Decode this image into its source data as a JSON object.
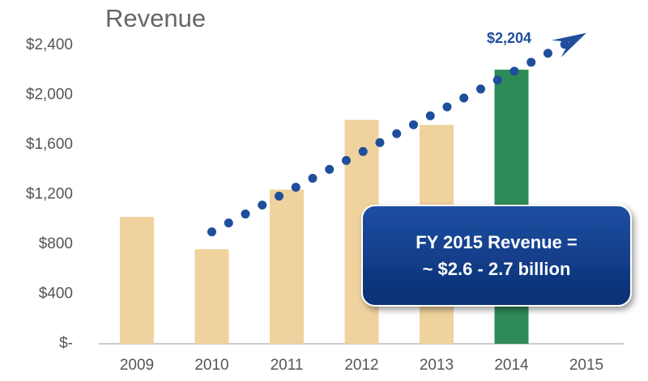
{
  "chart_data": {
    "type": "bar",
    "title": "Revenue",
    "categories": [
      "2009",
      "2010",
      "2011",
      "2012",
      "2013",
      "2014",
      "2015"
    ],
    "values": [
      1020,
      760,
      1240,
      1800,
      1760,
      2204,
      null
    ],
    "value_labels": [
      null,
      null,
      null,
      null,
      null,
      "$2,204",
      null
    ],
    "colors": [
      "#f0d29e",
      "#f0d29e",
      "#f0d29e",
      "#f0d29e",
      "#f0d29e",
      "#2e8b57",
      "#f0d29e"
    ],
    "ylim": [
      0,
      2400
    ],
    "yticks": [
      {
        "value": 0,
        "label": "$-"
      },
      {
        "value": 400,
        "label": "$400"
      },
      {
        "value": 800,
        "label": "$800"
      },
      {
        "value": 1200,
        "label": "$1,200"
      },
      {
        "value": 1600,
        "label": "$1,600"
      },
      {
        "value": 2000,
        "label": "$2,000"
      },
      {
        "value": 2400,
        "label": "$2,400"
      }
    ],
    "trend": {
      "x": [
        "2010",
        "2015"
      ],
      "values": [
        900,
        2500
      ],
      "color": "#1f4e9c"
    },
    "annotation": [
      "FY 2015 Revenue =",
      "~ $2.6 - 2.7 billion"
    ]
  }
}
